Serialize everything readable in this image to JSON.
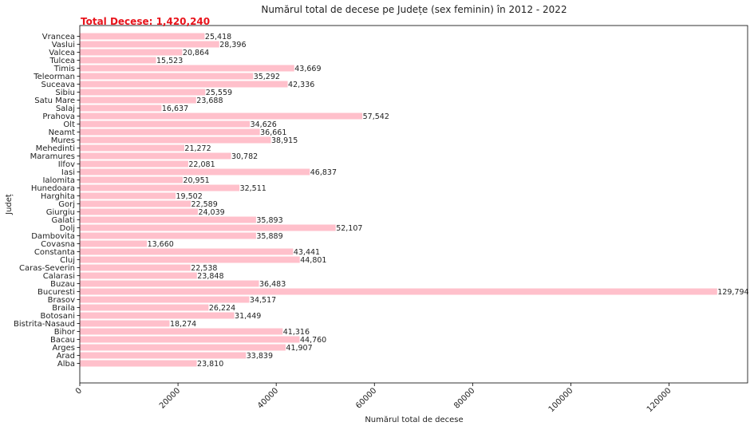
{
  "chart_data": {
    "type": "bar",
    "orientation": "horizontal",
    "title": "Numărul total de decese pe Județe (sex feminin) în 2012 - 2022",
    "xlabel": "Numărul total de decese",
    "ylabel": "Județ",
    "xlim": [
      0,
      136000
    ],
    "xticks": [
      0,
      20000,
      40000,
      60000,
      80000,
      100000,
      120000
    ],
    "xtick_labels": [
      "0",
      "20000",
      "40000",
      "60000",
      "80000",
      "100000",
      "120000"
    ],
    "bar_color": "#ffc0cb",
    "annotation": {
      "text": "Total Decese: 1,420,240",
      "color": "#e8141c",
      "placement": "top-left"
    },
    "grid": false,
    "categories": [
      "Alba",
      "Arad",
      "Arges",
      "Bacau",
      "Bihor",
      "Bistrita-Nasaud",
      "Botosani",
      "Braila",
      "Brasov",
      "Bucuresti",
      "Buzau",
      "Calarasi",
      "Caras-Severin",
      "Cluj",
      "Constanta",
      "Covasna",
      "Dambovita",
      "Dolj",
      "Galati",
      "Giurgiu",
      "Gorj",
      "Harghita",
      "Hunedoara",
      "Ialomita",
      "Iasi",
      "Ilfov",
      "Maramures",
      "Mehedinti",
      "Mures",
      "Neamt",
      "Olt",
      "Prahova",
      "Salaj",
      "Satu Mare",
      "Sibiu",
      "Suceava",
      "Teleorman",
      "Timis",
      "Tulcea",
      "Valcea",
      "Vaslui",
      "Vrancea"
    ],
    "values": [
      23810,
      33839,
      41907,
      44760,
      41316,
      18274,
      31449,
      26224,
      34517,
      129794,
      36483,
      23848,
      22538,
      44801,
      43441,
      13660,
      35889,
      52107,
      35893,
      24039,
      22589,
      19502,
      32511,
      20951,
      46837,
      22081,
      30782,
      21272,
      38915,
      36661,
      34626,
      57542,
      16637,
      23688,
      25559,
      42336,
      35292,
      43669,
      15523,
      20864,
      28396,
      25418
    ],
    "value_labels": [
      "23,810",
      "33,839",
      "41,907",
      "44,760",
      "41,316",
      "18,274",
      "31,449",
      "26,224",
      "34,517",
      "129,794",
      "36,483",
      "23,848",
      "22,538",
      "44,801",
      "43,441",
      "13,660",
      "35,889",
      "52,107",
      "35,893",
      "24,039",
      "22,589",
      "19,502",
      "32,511",
      "20,951",
      "46,837",
      "22,081",
      "30,782",
      "21,272",
      "38,915",
      "36,661",
      "34,626",
      "57,542",
      "16,637",
      "23,688",
      "25,559",
      "42,336",
      "35,292",
      "43,669",
      "15,523",
      "20,864",
      "28,396",
      "25,418"
    ]
  }
}
